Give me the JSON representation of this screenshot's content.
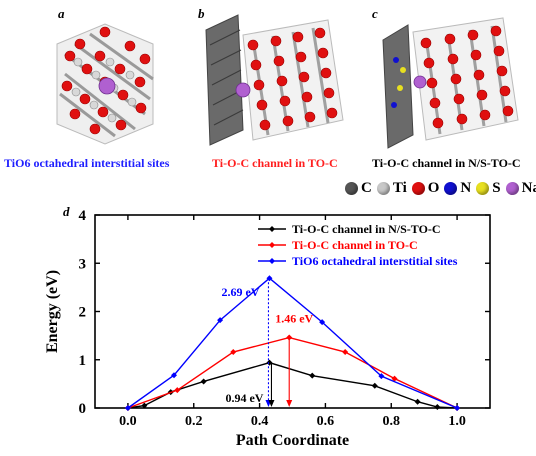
{
  "panels": {
    "a": {
      "label": "a",
      "caption": "TiO6 octahedral interstitial sites",
      "caption_color": "#1f1fff"
    },
    "b": {
      "label": "b",
      "caption": "Ti-O-C channel in TO-C",
      "caption_color": "#ff1f1f"
    },
    "c": {
      "label": "c",
      "caption": "Ti-O-C channel in N/S-TO-C",
      "caption_color": "#000000"
    },
    "d": {
      "label": "d"
    }
  },
  "element_legend": [
    {
      "symbol": "C",
      "color": "#555555"
    },
    {
      "symbol": "Ti",
      "color": "#c8c8c8"
    },
    {
      "symbol": "O",
      "color": "#e01010"
    },
    {
      "symbol": "N",
      "color": "#1010d0"
    },
    {
      "symbol": "S",
      "color": "#e8e020"
    },
    {
      "symbol": "Na",
      "color": "#b060d0"
    }
  ],
  "chart_data": {
    "type": "line",
    "xlabel": "Path Coordinate",
    "ylabel": "Energy (eV)",
    "xlim": [
      -0.1,
      1.1
    ],
    "ylim": [
      0,
      4
    ],
    "xticks": [
      "0.0",
      "0.2",
      "0.4",
      "0.6",
      "0.8",
      "1.0"
    ],
    "yticks": [
      "0",
      "1",
      "2",
      "3",
      "4"
    ],
    "legend_position": "top-right",
    "series": [
      {
        "name": "Ti-O-C channel in N/S-TO-C",
        "color": "#000000",
        "x": [
          0.0,
          0.05,
          0.13,
          0.23,
          0.43,
          0.56,
          0.75,
          0.88,
          0.94,
          1.0
        ],
        "y": [
          0.0,
          0.05,
          0.33,
          0.55,
          0.94,
          0.67,
          0.46,
          0.13,
          0.02,
          0.0
        ]
      },
      {
        "name": "Ti-O-C channel in TO-C",
        "color": "#ff0000",
        "x": [
          0.0,
          0.15,
          0.32,
          0.49,
          0.66,
          0.81,
          1.0
        ],
        "y": [
          0.0,
          0.37,
          1.16,
          1.46,
          1.16,
          0.61,
          0.0
        ]
      },
      {
        "name": "TiO6 octahedral interstitial sites",
        "color": "#0000ff",
        "x": [
          0.0,
          0.14,
          0.28,
          0.43,
          0.59,
          0.77,
          1.0
        ],
        "y": [
          0.0,
          0.68,
          1.82,
          2.69,
          1.78,
          0.66,
          0.0
        ]
      }
    ],
    "annotations": [
      {
        "text": "2.69 eV",
        "color": "#0000ff",
        "x": 0.43,
        "y": 2.69
      },
      {
        "text": "1.46 eV",
        "color": "#ff0000",
        "x": 0.49,
        "y": 1.46
      },
      {
        "text": "0.94 eV",
        "color": "#000000",
        "x": 0.43,
        "y": 0.94
      }
    ]
  }
}
